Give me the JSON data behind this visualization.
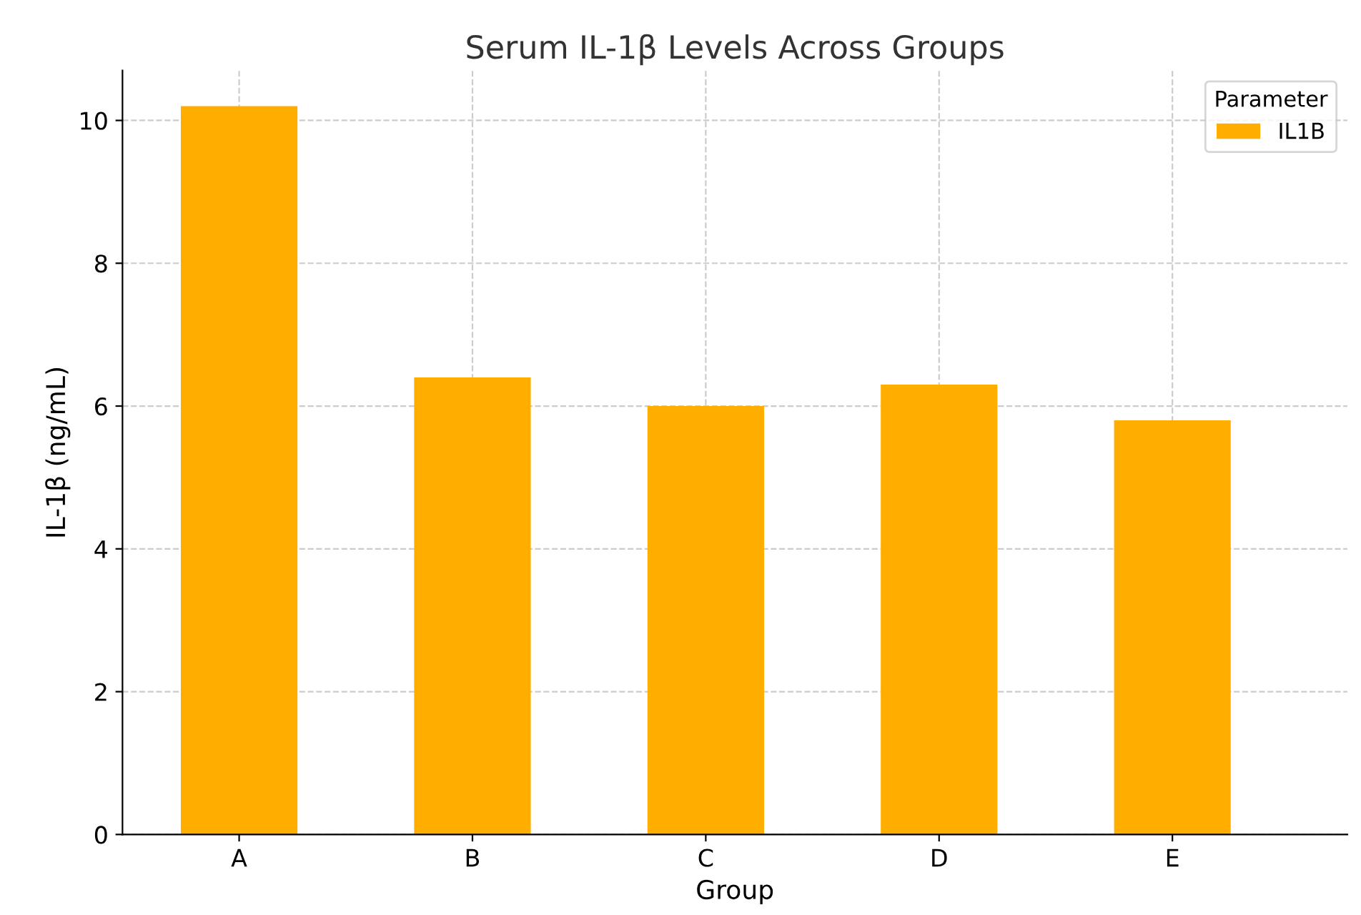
{
  "chart_data": {
    "type": "bar",
    "title": "Serum IL-1β Levels Across Groups",
    "xlabel": "Group",
    "ylabel": "IL-1β (ng/mL)",
    "legend_title": "Parameter",
    "categories": [
      "A",
      "B",
      "C",
      "D",
      "E"
    ],
    "series": [
      {
        "name": "IL1B",
        "color": "#ffae00",
        "values": [
          10.2,
          6.4,
          6.0,
          6.3,
          5.8
        ]
      }
    ],
    "ylim": [
      0,
      10.7
    ],
    "yticks": [
      0,
      2,
      4,
      6,
      8,
      10
    ],
    "grid": true,
    "legend": "top right"
  }
}
